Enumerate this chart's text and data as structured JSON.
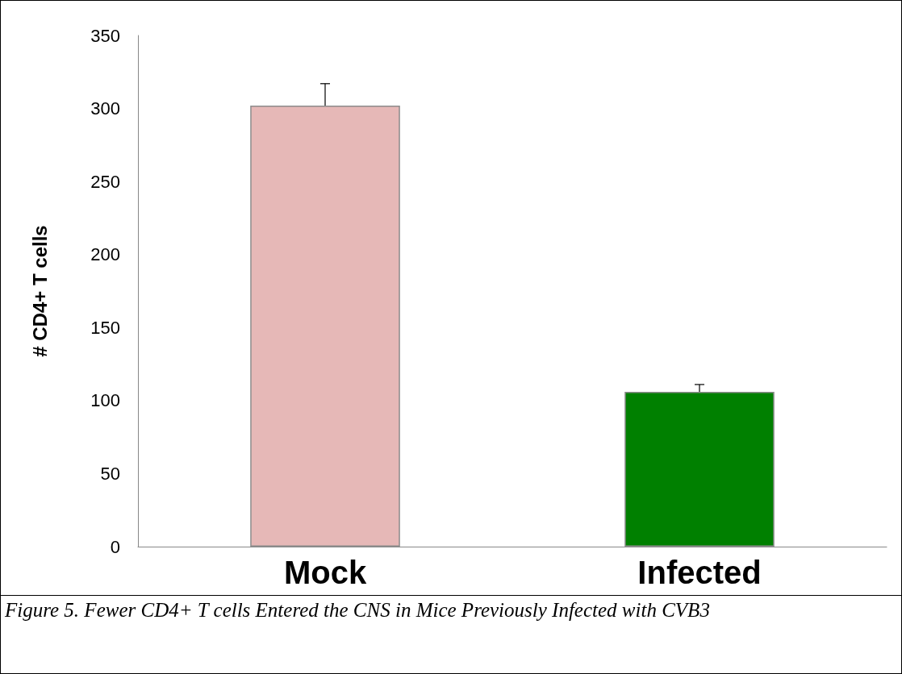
{
  "chart_data": {
    "type": "bar",
    "ylabel": "# CD4+ T cells",
    "categories": [
      "Mock",
      "Infected"
    ],
    "values": [
      302,
      106
    ],
    "colors": [
      "#e6b8b7",
      "#008000"
    ],
    "errors": [
      [
        302,
        317
      ],
      [
        106,
        111
      ]
    ],
    "ylim": [
      0,
      350
    ],
    "yticks": [
      0,
      50,
      100,
      150,
      200,
      250,
      300,
      350
    ],
    "grid": false,
    "annotations": [
      "Figure 5. Fewer CD4+ T cells Entered the CNS in Mice Previously Infected with CVB3"
    ]
  }
}
